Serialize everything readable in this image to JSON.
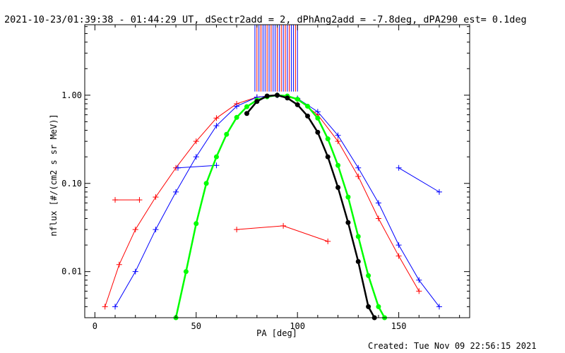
{
  "chart_data": {
    "type": "line",
    "title": "2021-10-23/01:39:38 - 01:44:29 UT, dSectr2add = 2, dPhAng2add = -7.8deg, dPA290_est=  0.1deg",
    "xlabel": "PA [deg]",
    "ylabel": "nflux [#/(cm2 s sr MeV)]",
    "xlim": [
      -5,
      185
    ],
    "ylim": [
      0.003,
      6.3
    ],
    "yscale": "log",
    "x_ticks": [
      0,
      50,
      100,
      150
    ],
    "y_ticks": [
      {
        "value": 0.01,
        "label": "0.01"
      },
      {
        "value": 0.1,
        "label": "0.10"
      },
      {
        "value": 1,
        "label": "1.00"
      }
    ],
    "grid": false,
    "colors": {
      "red": "#ff0000",
      "blue": "#0000ff",
      "green": "#00ff00",
      "black": "#000000"
    },
    "series": [
      {
        "color": "red",
        "style": "lines+plus",
        "points": [
          [
            5,
            0.004
          ],
          [
            12,
            0.012
          ],
          [
            20,
            0.03
          ],
          [
            30,
            0.07
          ],
          [
            40,
            0.15
          ],
          [
            50,
            0.3
          ],
          [
            60,
            0.55
          ],
          [
            70,
            0.8
          ],
          [
            80,
            0.95
          ],
          [
            90,
            1.0
          ],
          [
            100,
            0.9
          ],
          [
            110,
            0.6
          ],
          [
            120,
            0.3
          ],
          [
            130,
            0.12
          ],
          [
            140,
            0.04
          ],
          [
            150,
            0.015
          ],
          [
            160,
            0.006
          ]
        ]
      },
      {
        "color": "red",
        "style": "lines+plus",
        "points": [
          [
            70,
            0.03
          ],
          [
            93,
            0.033
          ],
          [
            115,
            0.022
          ]
        ]
      },
      {
        "color": "red",
        "style": "lines+plus",
        "points": [
          [
            10,
            0.065
          ],
          [
            22,
            0.065
          ]
        ]
      },
      {
        "color": "blue",
        "style": "lines+plus",
        "points": [
          [
            10,
            0.004
          ],
          [
            20,
            0.01
          ],
          [
            30,
            0.03
          ],
          [
            40,
            0.08
          ],
          [
            50,
            0.2
          ],
          [
            60,
            0.45
          ],
          [
            70,
            0.75
          ],
          [
            80,
            0.95
          ],
          [
            90,
            1.0
          ],
          [
            100,
            0.92
          ],
          [
            110,
            0.65
          ],
          [
            120,
            0.35
          ],
          [
            130,
            0.15
          ],
          [
            140,
            0.06
          ],
          [
            150,
            0.02
          ],
          [
            160,
            0.008
          ],
          [
            170,
            0.004
          ]
        ]
      },
      {
        "color": "blue",
        "style": "lines+plus",
        "points": [
          [
            41,
            0.15
          ],
          [
            60,
            0.16
          ]
        ]
      },
      {
        "color": "blue",
        "style": "lines+plus",
        "points": [
          [
            150,
            0.15
          ],
          [
            170,
            0.08
          ]
        ]
      },
      {
        "color": "green",
        "style": "dots",
        "name": "",
        "points": [
          [
            40,
            0.003
          ],
          [
            45,
            0.01
          ],
          [
            50,
            0.035
          ],
          [
            55,
            0.1
          ],
          [
            60,
            0.2
          ],
          [
            65,
            0.36
          ],
          [
            70,
            0.56
          ],
          [
            75,
            0.74
          ],
          [
            80,
            0.88
          ],
          [
            85,
            0.96
          ],
          [
            90,
            1.0
          ],
          [
            95,
            0.98
          ],
          [
            100,
            0.9
          ],
          [
            105,
            0.75
          ],
          [
            110,
            0.55
          ],
          [
            115,
            0.32
          ],
          [
            120,
            0.16
          ],
          [
            125,
            0.07
          ],
          [
            130,
            0.025
          ],
          [
            135,
            0.009
          ],
          [
            140,
            0.004
          ],
          [
            143,
            0.003
          ]
        ]
      },
      {
        "color": "black",
        "style": "dots",
        "name": "",
        "points": [
          [
            75,
            0.62
          ],
          [
            80,
            0.85
          ],
          [
            85,
            0.98
          ],
          [
            90,
            1.0
          ],
          [
            95,
            0.93
          ],
          [
            100,
            0.78
          ],
          [
            105,
            0.58
          ],
          [
            110,
            0.38
          ],
          [
            115,
            0.2
          ],
          [
            120,
            0.09
          ],
          [
            125,
            0.036
          ],
          [
            130,
            0.013
          ],
          [
            135,
            0.004
          ],
          [
            138,
            0.003
          ]
        ]
      }
    ],
    "top_markers": {
      "blue": [
        79,
        81,
        83,
        84,
        86,
        88,
        89,
        91,
        93,
        95,
        97,
        98,
        100
      ],
      "red": [
        80,
        82,
        85,
        87,
        90,
        92,
        94,
        96,
        99
      ]
    }
  },
  "footer": {
    "created": "Created: Tue Nov 09 22:56:15 2021"
  }
}
